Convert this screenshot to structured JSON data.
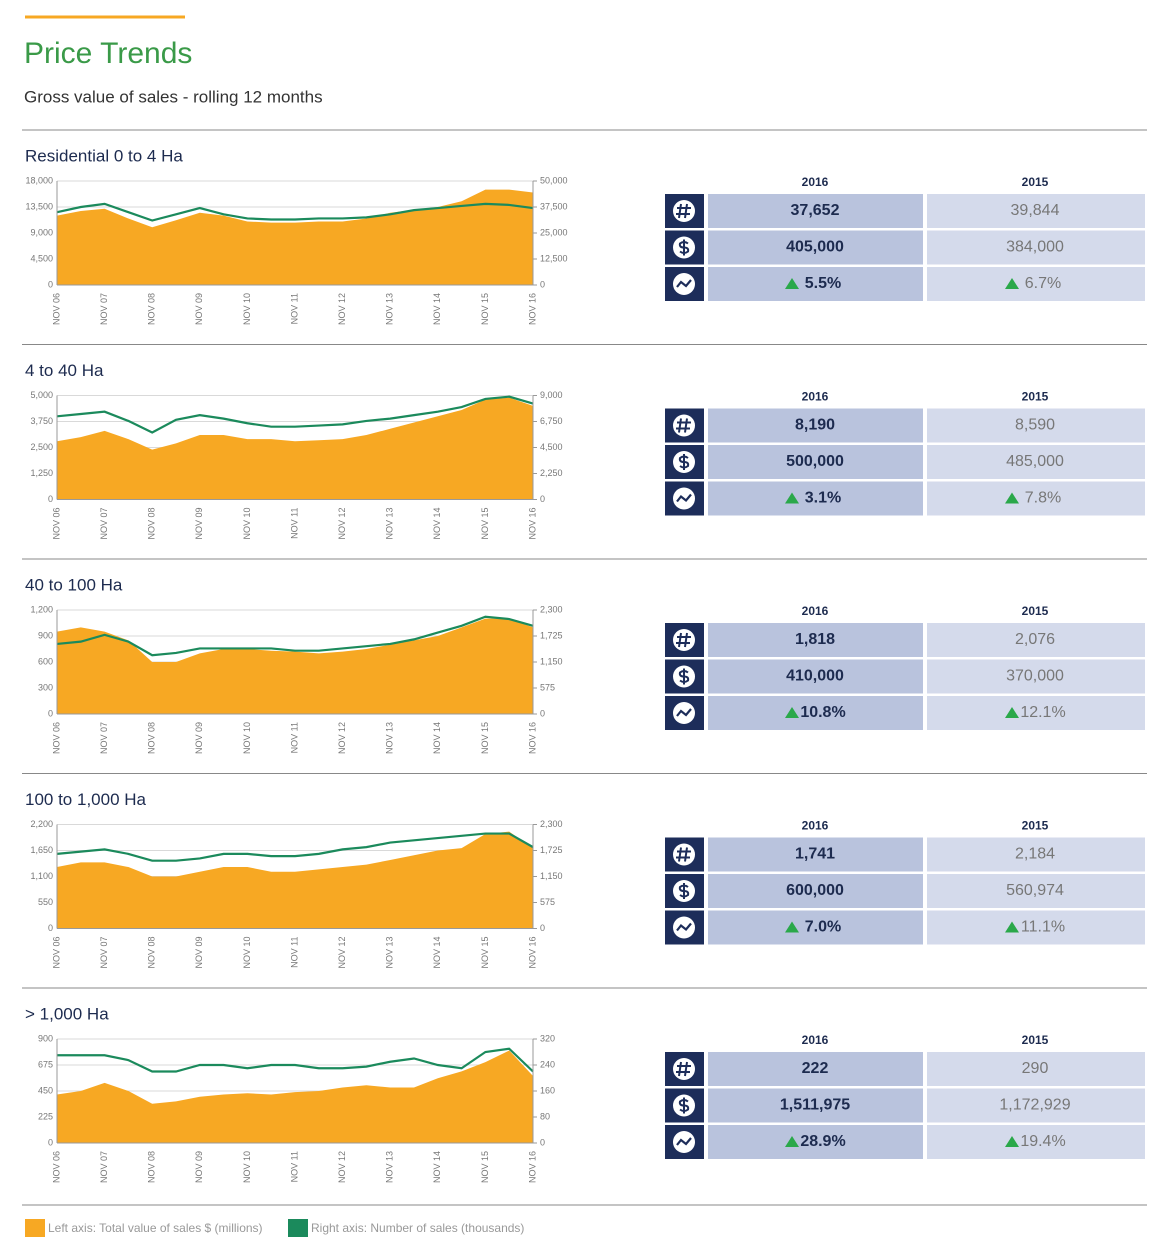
{
  "header": {
    "title": "Price Trends",
    "subtitle": "Gross value of sales - rolling 12 months"
  },
  "legend": [
    {
      "label": "Left axis: Total value of sales $ (millions)",
      "color": "#f7a823"
    },
    {
      "label": "Right axis: Number of sales (thousands)",
      "color": "#1b8a5c"
    }
  ],
  "chart_data": [
    {
      "type": "area-line",
      "title": "Residential 0 to 4 Ha",
      "grid": true,
      "x": [
        "NOV 06",
        null,
        "NOV 07",
        null,
        "NOV 08",
        null,
        "NOV 09",
        null,
        "NOV 10",
        null,
        "NOV 11",
        null,
        "NOV 12",
        null,
        "NOV 13",
        null,
        "NOV 14",
        null,
        "NOV 15",
        null,
        "NOV 16"
      ],
      "ylim": [
        0,
        18000
      ],
      "yticks": [
        0,
        {
          "value": 4500,
          "label": "4,500"
        },
        {
          "value": 9000,
          "label": "9,000"
        },
        {
          "value": 13500,
          "label": "13,500"
        },
        {
          "value": 18000,
          "label": "18,000"
        }
      ],
      "y2lim": [
        0,
        50000
      ],
      "y2ticks": [
        0,
        {
          "value": 12500,
          "label": "12,500"
        },
        {
          "value": 25000,
          "label": "25,000"
        },
        {
          "value": 37500,
          "label": "37,500"
        },
        {
          "value": 50000,
          "label": "50,000"
        }
      ],
      "series": [
        {
          "type": "area",
          "color": "#f7a823",
          "values": [
            12000,
            12800,
            13200,
            11500,
            10000,
            11200,
            12500,
            12000,
            11000,
            10800,
            10800,
            11000,
            11000,
            11500,
            12500,
            13000,
            13500,
            14500,
            16500,
            16500,
            16000
          ]
        },
        {
          "type": "line",
          "axis": "y2",
          "color": "#1b8a5c",
          "values": [
            35000,
            37500,
            39000,
            35000,
            31000,
            34000,
            37000,
            34000,
            32000,
            31500,
            31500,
            32000,
            32000,
            32500,
            34000,
            36000,
            37000,
            38000,
            39000,
            38500,
            37000
          ]
        }
      ],
      "table": {
        "columns": [
          "2016",
          "2015"
        ],
        "rows": [
          [
            "37,652",
            "39,844"
          ],
          [
            "405,000",
            "384,000"
          ],
          [
            "5.5%",
            "6.7%"
          ]
        ]
      }
    },
    {
      "type": "area-line",
      "title": "4 to 40 Ha",
      "grid": true,
      "x": [
        "NOV 06",
        null,
        "NOV 07",
        null,
        "NOV 08",
        null,
        "NOV 09",
        null,
        "NOV 10",
        null,
        "NOV 11",
        null,
        "NOV 12",
        null,
        "NOV 13",
        null,
        "NOV 14",
        null,
        "NOV 15",
        null,
        "NOV 16"
      ],
      "ylim": [
        0,
        5000
      ],
      "yticks": [
        0,
        {
          "value": 1250,
          "label": "1,250"
        },
        {
          "value": 2500,
          "label": "2,500"
        },
        {
          "value": 3750,
          "label": "3,750"
        },
        {
          "value": 5000,
          "label": "5,000"
        }
      ],
      "y2lim": [
        0,
        9000
      ],
      "y2ticks": [
        0,
        {
          "value": 2250,
          "label": "2,250"
        },
        {
          "value": 4500,
          "label": "4,500"
        },
        {
          "value": 6750,
          "label": "6,750"
        },
        {
          "value": 9000,
          "label": "9,000"
        }
      ],
      "series": [
        {
          "type": "area",
          "color": "#f7a823",
          "values": [
            2800,
            3000,
            3300,
            2900,
            2400,
            2700,
            3100,
            3100,
            2900,
            2900,
            2800,
            2850,
            2900,
            3100,
            3400,
            3700,
            4000,
            4300,
            4800,
            4900,
            4500
          ]
        },
        {
          "type": "line",
          "axis": "y2",
          "color": "#1b8a5c",
          "values": [
            7200,
            7400,
            7600,
            6800,
            5800,
            6900,
            7300,
            7000,
            6600,
            6300,
            6300,
            6400,
            6500,
            6800,
            7000,
            7300,
            7600,
            8000,
            8700,
            8900,
            8300
          ]
        }
      ],
      "table": {
        "columns": [
          "2016",
          "2015"
        ],
        "rows": [
          [
            "8,190",
            "8,590"
          ],
          [
            "500,000",
            "485,000"
          ],
          [
            "3.1%",
            "7.8%"
          ]
        ]
      }
    },
    {
      "type": "area-line",
      "title": "40 to 100 Ha",
      "grid": true,
      "x": [
        "NOV 06",
        null,
        "NOV 07",
        null,
        "NOV 08",
        null,
        "NOV 09",
        null,
        "NOV 10",
        null,
        "NOV 11",
        null,
        "NOV 12",
        null,
        "NOV 13",
        null,
        "NOV 14",
        null,
        "NOV 15",
        null,
        "NOV 16"
      ],
      "ylim": [
        0,
        1200
      ],
      "yticks": [
        0,
        300,
        600,
        900,
        {
          "value": 1200,
          "label": "1,200"
        }
      ],
      "y2lim": [
        0,
        2300
      ],
      "y2ticks": [
        0,
        575,
        {
          "value": 1150,
          "label": "1,150"
        },
        {
          "value": 1725,
          "label": "1,725"
        },
        {
          "value": 2300,
          "label": "2,300"
        }
      ],
      "series": [
        {
          "type": "area",
          "color": "#f7a823",
          "values": [
            950,
            1000,
            950,
            850,
            600,
            600,
            700,
            750,
            750,
            730,
            720,
            700,
            720,
            750,
            800,
            850,
            900,
            1000,
            1100,
            1100,
            1000
          ]
        },
        {
          "type": "line",
          "axis": "y2",
          "color": "#1b8a5c",
          "values": [
            1550,
            1600,
            1750,
            1600,
            1300,
            1350,
            1450,
            1450,
            1450,
            1450,
            1400,
            1400,
            1450,
            1500,
            1550,
            1650,
            1800,
            1950,
            2150,
            2100,
            1950
          ]
        }
      ],
      "table": {
        "columns": [
          "2016",
          "2015"
        ],
        "rows": [
          [
            "1,818",
            "2,076"
          ],
          [
            "410,000",
            "370,000"
          ],
          [
            "10.8%",
            "12.1%"
          ]
        ]
      }
    },
    {
      "type": "area-line",
      "title": "100 to 1,000 Ha",
      "grid": true,
      "x": [
        "NOV 06",
        null,
        "NOV 07",
        null,
        "NOV 08",
        null,
        "NOV 09",
        null,
        "NOV 10",
        null,
        "NOV 11",
        null,
        "NOV 12",
        null,
        "NOV 13",
        null,
        "NOV 14",
        null,
        "NOV 15",
        null,
        "NOV 16"
      ],
      "ylim": [
        0,
        2200
      ],
      "yticks": [
        0,
        550,
        {
          "value": 1100,
          "label": "1,100"
        },
        {
          "value": 1650,
          "label": "1,650"
        },
        {
          "value": 2200,
          "label": "2,200"
        }
      ],
      "y2lim": [
        0,
        2300
      ],
      "y2ticks": [
        0,
        575,
        {
          "value": 1150,
          "label": "1,150"
        },
        {
          "value": 1725,
          "label": "1,725"
        },
        {
          "value": 2300,
          "label": "2,300"
        }
      ],
      "series": [
        {
          "type": "area",
          "color": "#f7a823",
          "values": [
            1300,
            1400,
            1400,
            1300,
            1100,
            1100,
            1200,
            1300,
            1300,
            1200,
            1200,
            1250,
            1300,
            1350,
            1450,
            1550,
            1650,
            1700,
            2000,
            2050,
            1700
          ]
        },
        {
          "type": "line",
          "axis": "y2",
          "color": "#1b8a5c",
          "values": [
            1650,
            1700,
            1750,
            1650,
            1500,
            1500,
            1550,
            1650,
            1650,
            1600,
            1600,
            1650,
            1750,
            1800,
            1900,
            1950,
            2000,
            2050,
            2100,
            2100,
            1800
          ]
        }
      ],
      "table": {
        "columns": [
          "2016",
          "2015"
        ],
        "rows": [
          [
            "1,741",
            "2,184"
          ],
          [
            "600,000",
            "560,974"
          ],
          [
            "7.0%",
            "11.1%"
          ]
        ]
      }
    },
    {
      "type": "area-line",
      "title": "> 1,000 Ha",
      "grid": true,
      "x": [
        "NOV 06",
        null,
        "NOV 07",
        null,
        "NOV 08",
        null,
        "NOV 09",
        null,
        "NOV 10",
        null,
        "NOV 11",
        null,
        "NOV 12",
        null,
        "NOV 13",
        null,
        "NOV 14",
        null,
        "NOV 15",
        null,
        "NOV 16"
      ],
      "ylim": [
        0,
        900
      ],
      "yticks": [
        0,
        225,
        450,
        675,
        900
      ],
      "y2lim": [
        0,
        320
      ],
      "y2ticks": [
        0,
        80,
        160,
        240,
        320
      ],
      "series": [
        {
          "type": "area",
          "color": "#f7a823",
          "values": [
            420,
            450,
            520,
            450,
            340,
            360,
            400,
            420,
            430,
            420,
            440,
            450,
            480,
            500,
            480,
            480,
            560,
            620,
            700,
            800,
            580
          ]
        },
        {
          "type": "line",
          "axis": "y2",
          "color": "#1b8a5c",
          "values": [
            270,
            270,
            270,
            255,
            220,
            220,
            240,
            240,
            230,
            240,
            240,
            230,
            230,
            235,
            250,
            260,
            240,
            230,
            280,
            290,
            220
          ]
        }
      ],
      "table": {
        "columns": [
          "2016",
          "2015"
        ],
        "rows": [
          [
            "222",
            "290"
          ],
          [
            "1,511,975",
            "1,172,929"
          ],
          [
            "28.9%",
            "19.4%"
          ]
        ]
      }
    }
  ]
}
